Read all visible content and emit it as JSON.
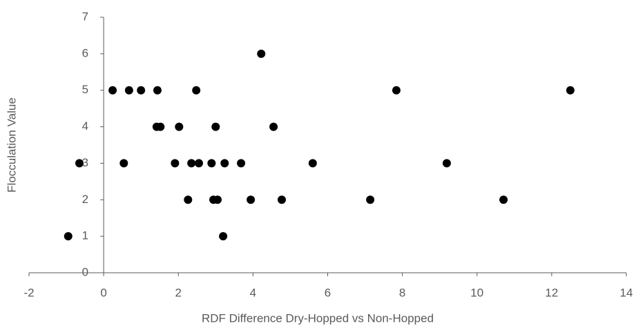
{
  "chart_data": {
    "type": "scatter",
    "x_label": "RDF Difference Dry-Hopped vs Non-Hopped",
    "y_label": "Flocculation Value",
    "series": [
      {
        "color": "#000000",
        "x": [
          -0.95,
          -0.65,
          0.24,
          0.54,
          0.68,
          1.0,
          1.42,
          1.44,
          1.52,
          1.91,
          2.02,
          2.26,
          2.35,
          2.48,
          2.55,
          2.89,
          2.94,
          3.0,
          3.05,
          3.2,
          3.24,
          3.68,
          3.94,
          4.22,
          4.55,
          4.77,
          5.6,
          7.14,
          7.84,
          9.19,
          10.71,
          12.5
        ],
        "values": [
          1,
          3,
          5,
          3,
          5,
          5,
          4,
          5,
          4,
          3,
          4,
          2,
          3,
          5,
          3,
          3,
          2,
          4,
          2,
          1,
          3,
          3,
          2,
          6,
          4,
          2,
          3,
          2,
          5,
          3,
          2,
          5
        ]
      }
    ],
    "xlim": [
      -2,
      14
    ],
    "xticks": [
      -2,
      0,
      2,
      4,
      6,
      8,
      10,
      12,
      14
    ],
    "ylim": [
      0,
      7
    ],
    "yticks": [
      0,
      1,
      2,
      3,
      4,
      5,
      6,
      7
    ],
    "grid": false
  }
}
